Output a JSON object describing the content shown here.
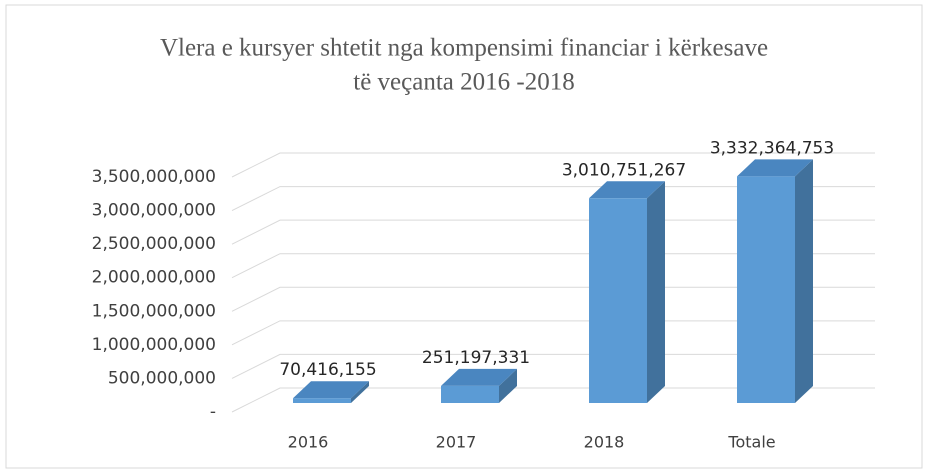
{
  "chart_data": {
    "type": "bar3d",
    "title": [
      "Vlera e kursyer shtetit nga kompensimi financiar i kërkesave",
      "të veçanta 2016 -2018"
    ],
    "categories": [
      "2016",
      "2017",
      "2018",
      "Totale"
    ],
    "values": [
      70416155,
      251197331,
      3010751267,
      3332364753
    ],
    "value_labels": [
      "70,416,155",
      "251,197,331",
      "3,010,751,267",
      "3,332,364,753"
    ],
    "color": "#5b9bd5",
    "ylim": [
      0,
      3500000000
    ],
    "yticks": [
      {
        "value": 0,
        "label": "-"
      },
      {
        "value": 500000000,
        "label": "500,000,000"
      },
      {
        "value": 1000000000,
        "label": "1,000,000,000"
      },
      {
        "value": 1500000000,
        "label": "1,500,000,000"
      },
      {
        "value": 2000000000,
        "label": "2,000,000,000"
      },
      {
        "value": 2500000000,
        "label": "2,500,000,000"
      },
      {
        "value": 3000000000,
        "label": "3,000,000,000"
      },
      {
        "value": 3500000000,
        "label": "3,500,000,000"
      }
    ],
    "grid": true
  }
}
